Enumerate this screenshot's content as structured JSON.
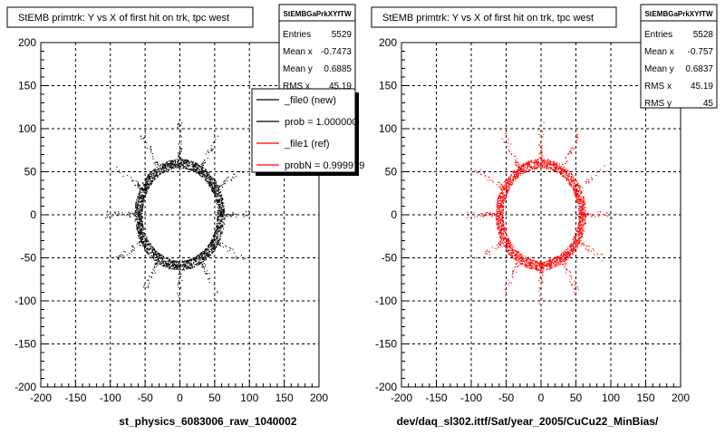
{
  "chart_data": [
    {
      "type": "scatter",
      "title": "StEMB primtrk: Y vs X of first hit on trk, tpc west",
      "xlabel": "st_physics_6083006_raw_1040002",
      "ylabel": "",
      "xlim": [
        -200,
        200
      ],
      "ylim": [
        -200,
        200
      ],
      "x_ticks": [
        "-200",
        "-150",
        "-100",
        "-50",
        "0",
        "50",
        "100",
        "150",
        "200"
      ],
      "y_ticks": [
        "200",
        "150",
        "100",
        "50",
        "0",
        "-50",
        "-100",
        "-150",
        "-200"
      ],
      "grid": true,
      "marker_color": "#000000",
      "shape": "octagonal ring of hits, inner radius about 55, outer radius about 65, with sparse spikes out to radius about 100",
      "stats": {
        "name": "StEMBGaPrkXYfTW",
        "rows": [
          {
            "label": "Entries",
            "value": "5529"
          },
          {
            "label": "Mean x",
            "value": "-0.7473"
          },
          {
            "label": "Mean y",
            "value": "0.6885"
          },
          {
            "label": "RMS x",
            "value": "45.19"
          }
        ]
      },
      "legend": {
        "placement": "top-right",
        "entries": [
          {
            "label": "_file0 (new)",
            "color": "#000000"
          },
          {
            "label": "prob = 1.000000",
            "color": "#000000"
          },
          {
            "label": "_file1 (ref)",
            "color": "#ff0000"
          },
          {
            "label": "probN = 0.999979",
            "color": "#ff0000"
          }
        ]
      }
    },
    {
      "type": "scatter",
      "title": "StEMB primtrk: Y vs X of first hit on trk, tpc west",
      "xlabel": "dev/daq_sl302.ittf/Sat/year_2005/CuCu22_MinBias/",
      "ylabel": "",
      "xlim": [
        -200,
        200
      ],
      "ylim": [
        -200,
        200
      ],
      "x_ticks": [
        "-200",
        "-150",
        "-100",
        "-50",
        "0",
        "50",
        "100",
        "150",
        "200"
      ],
      "y_ticks": [
        "200",
        "150",
        "100",
        "50",
        "0",
        "-50",
        "-100",
        "-150",
        "-200"
      ],
      "grid": true,
      "marker_color": "#ff0000",
      "shape": "octagonal ring of hits, inner radius about 55, outer radius about 65, with sparse spikes out to radius about 100",
      "stats": {
        "name": "StEMBGaPrkXYfTW",
        "rows": [
          {
            "label": "Entries",
            "value": "5528"
          },
          {
            "label": "Mean x",
            "value": "-0.757"
          },
          {
            "label": "Mean y",
            "value": "0.6837"
          },
          {
            "label": "RMS x",
            "value": "45.19"
          },
          {
            "label": "RMS y",
            "value": "45"
          }
        ]
      }
    }
  ]
}
